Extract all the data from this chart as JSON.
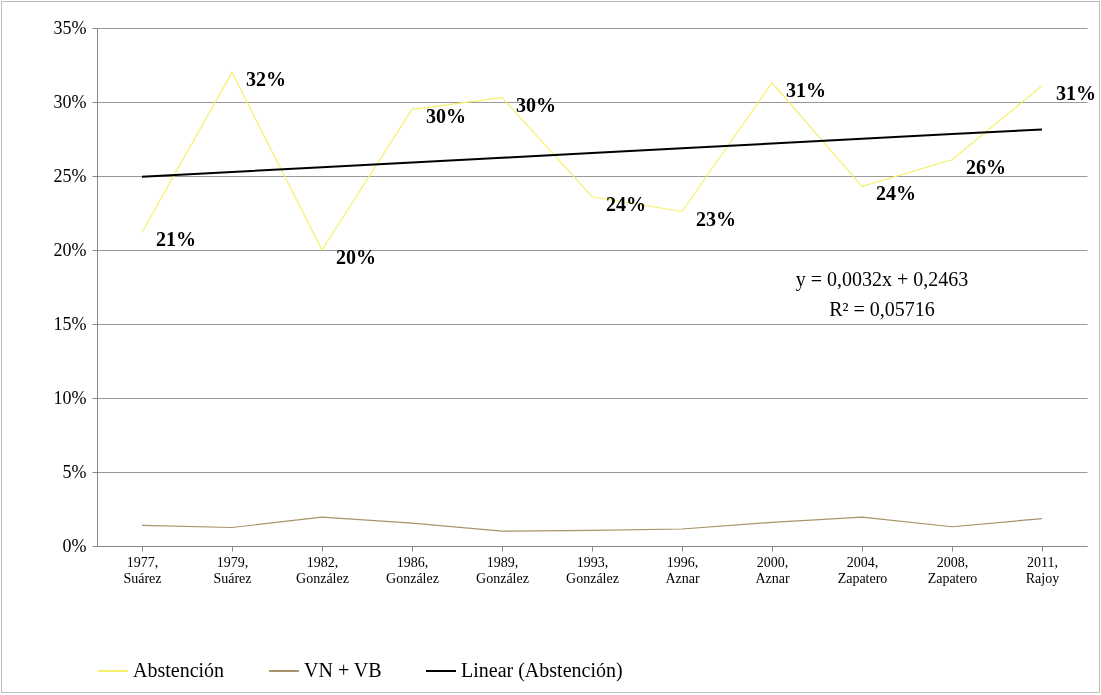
{
  "chart_data": {
    "type": "line",
    "categories": [
      "1977, Suárez",
      "1979, Suárez",
      "1982, González",
      "1986, González",
      "1989, González",
      "1993, González",
      "1996, Aznar",
      "2000, Aznar",
      "2004, Zapatero",
      "2008, Zapatero",
      "2011, Rajoy"
    ],
    "series": [
      {
        "name": "Abstención",
        "color": "#f5f06a",
        "values": [
          21.2,
          32.0,
          20.0,
          29.5,
          30.3,
          23.6,
          22.6,
          31.3,
          24.3,
          26.1,
          31.1
        ],
        "value_labels": [
          "21%",
          "32%",
          "20%",
          "30%",
          "30%",
          "24%",
          "23%",
          "31%",
          "24%",
          "26%",
          "31%"
        ]
      },
      {
        "name": "VN + VB",
        "color": "#a8946a",
        "values": [
          1.4,
          1.25,
          1.95,
          1.55,
          1.0,
          1.05,
          1.15,
          1.6,
          1.95,
          1.3,
          1.85
        ]
      },
      {
        "name": "Linear (Abstención)",
        "color": "#000000",
        "values": [
          24.95,
          25.27,
          25.59,
          25.91,
          26.23,
          26.55,
          26.87,
          27.19,
          27.51,
          27.83,
          28.15
        ]
      }
    ],
    "ylim": [
      0,
      35
    ],
    "yticks": [
      {
        "value": 0,
        "label": "0%"
      },
      {
        "value": 5,
        "label": "5%"
      },
      {
        "value": 10,
        "label": "10%"
      },
      {
        "value": 15,
        "label": "15%"
      },
      {
        "value": 20,
        "label": "20%"
      },
      {
        "value": 25,
        "label": "25%"
      },
      {
        "value": 30,
        "label": "30%"
      },
      {
        "value": 35,
        "label": "35%"
      }
    ],
    "annotations": [
      "y = 0,0032x + 0,2463",
      "R² = 0,05716"
    ],
    "grid": "y",
    "legend": "bottom",
    "marker": "none",
    "line_style": "solid"
  }
}
